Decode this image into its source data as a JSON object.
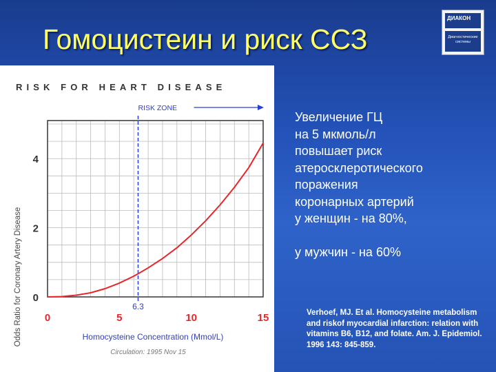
{
  "slide": {
    "title": "Гомоцистеин и риск ССЗ"
  },
  "logo": {
    "top_text": "ДИАКОН",
    "bottom_line1": "Диагностические",
    "bottom_line2": "системы",
    "bottom_color": "#1b3d8c"
  },
  "body_text": {
    "lines": [
      "Увеличение ГЦ",
      "на 5 мкмоль/л",
      "повышает риск",
      "атеросклеротического",
      "поражения",
      "коронарных артерий",
      "у женщин - на 80%,"
    ],
    "last_line": "у мужчин - на 60%"
  },
  "citation": {
    "text": "Verhoef, MJ. Et al. Homocysteine metabolism and riskof myocardial infarction: relation with vitamins B6, B12, and folate.  Am. J. Epidemiol. 1996 143: 845-859."
  },
  "chart_data": {
    "type": "line",
    "title": "RISK FOR HEART DISEASE",
    "xlabel": "Homocysteine Concentration (Mmol/L)",
    "ylabel": "Odds Ratio for Coronary Artery Disease",
    "xlim": [
      0,
      15
    ],
    "ylim": [
      0,
      5.1
    ],
    "x_ticks": [
      "0",
      "5",
      "10",
      "15"
    ],
    "y_ticks": [
      "0",
      "2",
      "4"
    ],
    "grid": true,
    "series": [
      {
        "color": "#e8262a",
        "x": [
          0,
          1,
          2,
          3,
          4,
          5,
          6,
          6.3,
          7,
          8,
          9,
          10,
          11,
          12,
          13,
          14,
          15
        ],
        "y": [
          0.0,
          0.01,
          0.05,
          0.12,
          0.24,
          0.4,
          0.6,
          0.67,
          0.84,
          1.11,
          1.42,
          1.79,
          2.2,
          2.66,
          3.17,
          3.74,
          4.45
        ]
      }
    ],
    "risk_threshold": {
      "x": 6.3,
      "label": "6.3",
      "color": "#2b3fd6"
    },
    "risk_zone_label": "RISK ZONE",
    "source_note": "Circulation: 1995 Nov 15"
  }
}
